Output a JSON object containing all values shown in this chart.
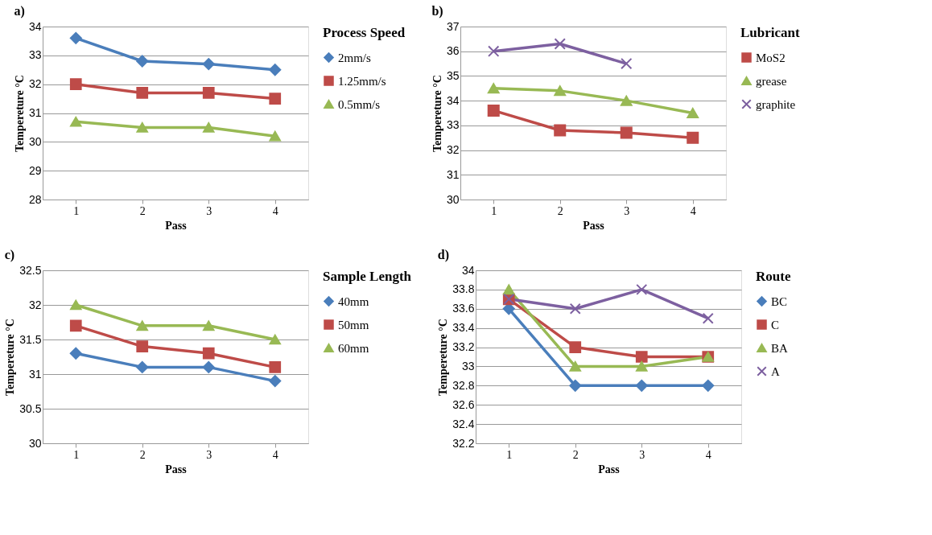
{
  "chart_data": [
    {
      "type": "line",
      "title": "a)",
      "xlabel": "Pass",
      "ylabel": "Tempereture °C",
      "legend_title": "Process Speed",
      "legend": "right",
      "grid": "y",
      "categories": [
        "1",
        "2",
        "3",
        "4"
      ],
      "ylim": [
        28,
        34
      ],
      "yticks": [
        28,
        29,
        30,
        31,
        32,
        33,
        34
      ],
      "series": [
        {
          "name": "2mm/s",
          "color": "#4a7ebb",
          "marker": "diamond",
          "values": [
            33.6,
            32.8,
            32.7,
            32.5
          ]
        },
        {
          "name": "1.25mm/s",
          "color": "#be4b48",
          "marker": "square",
          "values": [
            32.0,
            31.7,
            31.7,
            31.5
          ]
        },
        {
          "name": "0.5mm/s",
          "color": "#98b954",
          "marker": "triangle",
          "values": [
            30.7,
            30.5,
            30.5,
            30.2
          ]
        }
      ]
    },
    {
      "type": "line",
      "title": "b)",
      "xlabel": "Pass",
      "ylabel": "Tempereture °C",
      "legend_title": "Lubricant",
      "legend": "right",
      "grid": "y",
      "categories": [
        "1",
        "2",
        "3",
        "4"
      ],
      "ylim": [
        30,
        37
      ],
      "yticks": [
        30,
        31,
        32,
        33,
        34,
        35,
        36,
        37
      ],
      "series": [
        {
          "name": "MoS2",
          "color": "#be4b48",
          "marker": "square",
          "values": [
            33.6,
            32.8,
            32.7,
            32.5
          ]
        },
        {
          "name": "grease",
          "color": "#98b954",
          "marker": "triangle",
          "values": [
            34.5,
            34.4,
            34.0,
            33.5
          ]
        },
        {
          "name": "graphite",
          "color": "#7d60a0",
          "marker": "cross",
          "values": [
            36.0,
            36.3,
            35.5,
            null
          ]
        }
      ]
    },
    {
      "type": "line",
      "title": "c)",
      "xlabel": "Pass",
      "ylabel": "Tempereture °C",
      "legend_title": "Sample Length",
      "legend": "right",
      "grid": "y",
      "categories": [
        "1",
        "2",
        "3",
        "4"
      ],
      "ylim": [
        30,
        32.5
      ],
      "yticks": [
        30,
        30.5,
        31,
        31.5,
        32,
        32.5
      ],
      "series": [
        {
          "name": "40mm",
          "color": "#4a7ebb",
          "marker": "diamond",
          "values": [
            31.3,
            31.1,
            31.1,
            30.9
          ]
        },
        {
          "name": "50mm",
          "color": "#be4b48",
          "marker": "square",
          "values": [
            31.7,
            31.4,
            31.3,
            31.1
          ]
        },
        {
          "name": "60mm",
          "color": "#98b954",
          "marker": "triangle",
          "values": [
            32.0,
            31.7,
            31.7,
            31.5
          ]
        }
      ]
    },
    {
      "type": "line",
      "title": "d)",
      "xlabel": "Pass",
      "ylabel": "Tempereture °C",
      "legend_title": "Route",
      "legend": "right",
      "grid": "y",
      "categories": [
        "1",
        "2",
        "3",
        "4"
      ],
      "ylim": [
        32.2,
        34
      ],
      "yticks": [
        32.2,
        32.4,
        32.6,
        32.8,
        33,
        33.2,
        33.4,
        33.6,
        33.8,
        34
      ],
      "series": [
        {
          "name": "BC",
          "color": "#4a7ebb",
          "marker": "diamond",
          "values": [
            33.6,
            32.8,
            32.8,
            32.8
          ]
        },
        {
          "name": "C",
          "color": "#be4b48",
          "marker": "square",
          "values": [
            33.7,
            33.2,
            33.1,
            33.1
          ]
        },
        {
          "name": "BA",
          "color": "#98b954",
          "marker": "triangle",
          "values": [
            33.8,
            33.0,
            33.0,
            33.1
          ]
        },
        {
          "name": "A",
          "color": "#7d60a0",
          "marker": "cross",
          "values": [
            33.7,
            33.6,
            33.8,
            33.5
          ]
        }
      ]
    }
  ]
}
